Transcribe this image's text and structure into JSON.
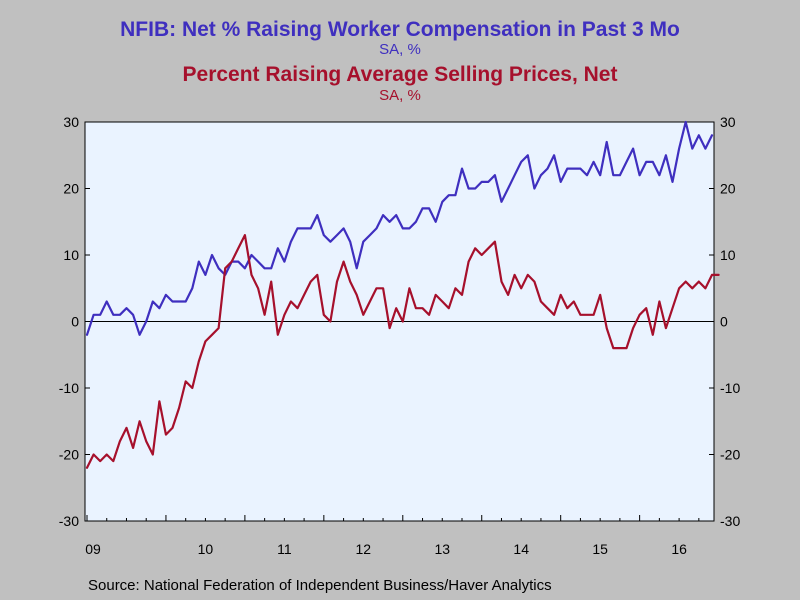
{
  "titles": {
    "title1": "NFIB: Net % Raising Worker Compensation in Past 3 Mo",
    "subtitle1": "SA, %",
    "title2": "Percent Raising Average Selling Prices, Net",
    "subtitle2": "SA, %"
  },
  "source": "Source:  National Federation of Independent Business/Haver Analytics",
  "colors": {
    "background": "#c0c0c0",
    "plot_bg": "#eaf3ff",
    "compensation": "#3f2fbf",
    "prices": "#a6102c"
  },
  "chart_data": {
    "type": "line",
    "x_start": "2009-01",
    "frequency": "monthly",
    "xlabels": [
      "09",
      "10",
      "11",
      "12",
      "13",
      "14",
      "15",
      "16"
    ],
    "ylim": [
      -30,
      30
    ],
    "yticks": [
      -30,
      -20,
      -10,
      0,
      10,
      20,
      30
    ],
    "right_axis_same_scale": true,
    "grid": false,
    "zero_line": true,
    "series": [
      {
        "name": "NFIB: Net % Raising Worker Compensation in Past 3 Mo",
        "color": "#3f2fbf",
        "values": [
          -2,
          1,
          1,
          3,
          1,
          1,
          2,
          1,
          -2,
          0,
          3,
          2,
          4,
          3,
          3,
          3,
          5,
          9,
          7,
          10,
          8,
          7,
          9,
          9,
          8,
          10,
          9,
          8,
          8,
          11,
          9,
          12,
          14,
          14,
          14,
          16,
          13,
          12,
          13,
          14,
          12,
          8,
          12,
          13,
          14,
          16,
          15,
          16,
          14,
          14,
          15,
          17,
          17,
          15,
          18,
          19,
          19,
          23,
          20,
          20,
          21,
          21,
          22,
          18,
          20,
          22,
          24,
          25,
          20,
          22,
          23,
          25,
          21,
          23,
          23,
          23,
          22,
          24,
          22,
          27,
          22,
          22,
          24,
          26,
          22,
          24,
          24,
          22,
          25,
          21,
          26,
          30,
          26,
          28,
          26,
          28
        ]
      },
      {
        "name": "Percent Raising Average Selling Prices, Net",
        "color": "#a6102c",
        "values": [
          -22,
          -20,
          -21,
          -20,
          -21,
          -18,
          -16,
          -19,
          -15,
          -18,
          -20,
          -12,
          -17,
          -16,
          -13,
          -9,
          -10,
          -6,
          -3,
          -2,
          -1,
          8,
          9,
          11,
          13,
          7,
          5,
          1,
          6,
          -2,
          1,
          3,
          2,
          4,
          6,
          7,
          1,
          0,
          6,
          9,
          6,
          4,
          1,
          3,
          5,
          5,
          -1,
          2,
          0,
          5,
          2,
          2,
          1,
          4,
          3,
          2,
          5,
          4,
          9,
          11,
          10,
          11,
          12,
          6,
          4,
          7,
          5,
          7,
          6,
          3,
          2,
          1,
          4,
          2,
          3,
          1,
          1,
          1,
          4,
          -1,
          -4,
          -4,
          -4,
          -1,
          1,
          2,
          -2,
          3,
          -1,
          2,
          5,
          6,
          5,
          6,
          5,
          7,
          7
        ]
      }
    ]
  }
}
